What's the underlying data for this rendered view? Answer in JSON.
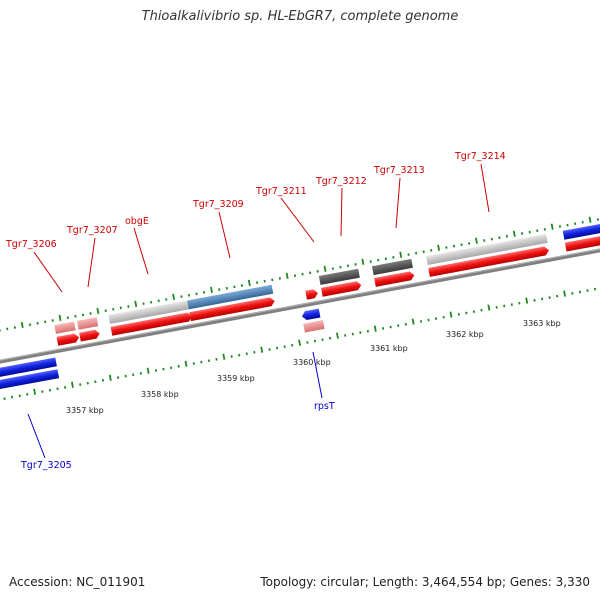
{
  "title": "Thioalkalivibrio sp. HL-EbGR7, complete genome",
  "footer": {
    "accession": "Accession: NC_011901",
    "summary": "Topology: circular; Length: 3,464,554 bp; Genes: 3,330"
  },
  "colors": {
    "backbone": "#808080",
    "cds": "#ee1111",
    "pseudo": "#e88888",
    "blue_gene": "#1122dd",
    "feature_light": "#c8c8c8",
    "feature_dark": "#5a5a5a",
    "feature_steel": "#4a80b8",
    "tick": "#228822",
    "label_forward": "#cc0000",
    "label_reverse": "#0000cc"
  },
  "scale_labels": [
    "3357 kbp",
    "3358 kbp",
    "3359 kbp",
    "3360 kbp",
    "3361 kbp",
    "3362 kbp",
    "3363 kbp"
  ],
  "genes": [
    {
      "name": "Tgr7_3205",
      "strand": "reverse"
    },
    {
      "name": "Tgr7_3206",
      "strand": "forward"
    },
    {
      "name": "Tgr7_3207",
      "strand": "forward"
    },
    {
      "name": "obgE",
      "strand": "forward"
    },
    {
      "name": "Tgr7_3209",
      "strand": "forward"
    },
    {
      "name": "Tgr7_3211",
      "strand": "forward"
    },
    {
      "name": "rpsT",
      "strand": "reverse"
    },
    {
      "name": "Tgr7_3212",
      "strand": "forward"
    },
    {
      "name": "Tgr7_3213",
      "strand": "forward"
    },
    {
      "name": "Tgr7_3214",
      "strand": "forward"
    }
  ]
}
